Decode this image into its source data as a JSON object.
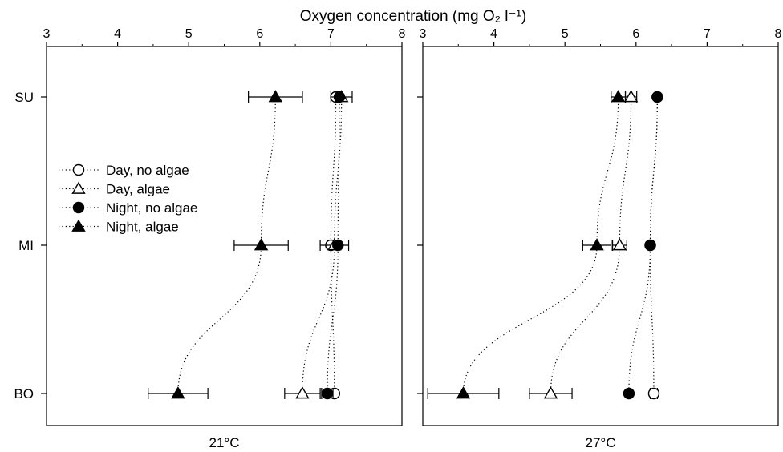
{
  "chart_data": {
    "type": "scatter",
    "title": "",
    "xlabel": "Oxygen concentration (mg O₂ l⁻¹)",
    "ylabel": "",
    "xlim": [
      3,
      8
    ],
    "x_ticks": [
      "3",
      "4",
      "5",
      "6",
      "7",
      "8"
    ],
    "categories": [
      "SU",
      "MI",
      "BO"
    ],
    "legend": {
      "placement": "upper-left of left panel",
      "entries": [
        {
          "label": "Day, no algae",
          "marker": "open-circle"
        },
        {
          "label": "Day, algae",
          "marker": "open-triangle"
        },
        {
          "label": "Night, no algae",
          "marker": "filled-circle"
        },
        {
          "label": "Night, algae",
          "marker": "filled-triangle"
        }
      ]
    },
    "panels": [
      {
        "label": "21°C",
        "series": [
          {
            "name": "Day, no algae",
            "marker": "open-circle",
            "values": [
              7.07,
              7.0,
              7.05
            ],
            "errors": [
              0.0,
              0.0,
              0.0
            ]
          },
          {
            "name": "Day, algae",
            "marker": "open-triangle",
            "values": [
              7.15,
              7.05,
              6.6
            ],
            "errors": [
              0.15,
              0.2,
              0.25
            ]
          },
          {
            "name": "Night, no algae",
            "marker": "filled-circle",
            "values": [
              7.12,
              7.1,
              6.95
            ],
            "errors": [
              0.0,
              0.0,
              0.08
            ]
          },
          {
            "name": "Night, algae",
            "marker": "filled-triangle",
            "values": [
              6.22,
              6.02,
              4.85
            ],
            "errors": [
              0.38,
              0.38,
              0.42
            ]
          }
        ]
      },
      {
        "label": "27°C",
        "series": [
          {
            "name": "Day, no algae",
            "marker": "open-circle",
            "values": [
              6.3,
              6.2,
              6.25
            ],
            "errors": [
              0.0,
              0.0,
              0.05
            ]
          },
          {
            "name": "Day, algae",
            "marker": "open-triangle",
            "values": [
              5.93,
              5.77,
              4.8
            ],
            "errors": [
              0.08,
              0.1,
              0.3
            ]
          },
          {
            "name": "Night, no algae",
            "marker": "filled-circle",
            "values": [
              6.3,
              6.2,
              5.9
            ],
            "errors": [
              0.0,
              0.0,
              0.0
            ]
          },
          {
            "name": "Night, algae",
            "marker": "filled-triangle",
            "values": [
              5.75,
              5.45,
              3.57
            ],
            "errors": [
              0.1,
              0.2,
              0.5
            ]
          }
        ]
      }
    ]
  }
}
